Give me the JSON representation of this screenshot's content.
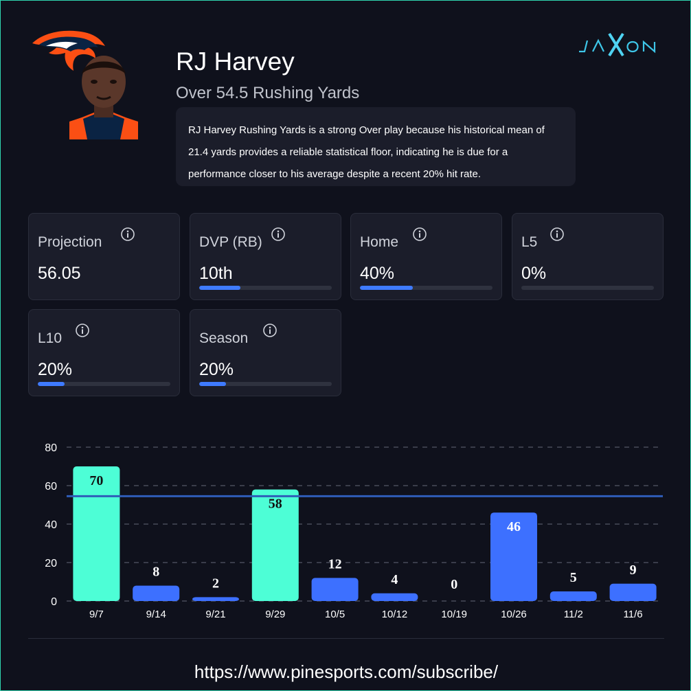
{
  "header": {
    "player_name": "RJ Harvey",
    "prop_line": "Over 54.5 Rushing Yards",
    "team_logo_icon": "broncos-logo",
    "headshot_icon": "player-headshot",
    "brand_logo": "JAXON"
  },
  "summary": {
    "text": "RJ Harvey Rushing Yards is a strong Over play because his historical mean of 21.4 yards provides a reliable statistical floor, indicating he is due for a performance closer to his average despite a recent 20% hit rate."
  },
  "stats": {
    "projection": {
      "label": "Projection",
      "value": "56.05"
    },
    "dvp": {
      "label": "DVP (RB)",
      "value": "10th",
      "progress": 0.31
    },
    "home": {
      "label": "Home",
      "value": "40%",
      "progress": 0.4
    },
    "l5": {
      "label": "L5",
      "value": "0%",
      "progress": 0
    },
    "l10": {
      "label": "L10",
      "value": "20%",
      "progress": 0.2
    },
    "season": {
      "label": "Season",
      "value": "20%",
      "progress": 0.2
    }
  },
  "chart_data": {
    "type": "bar",
    "categories": [
      "9/7",
      "9/14",
      "9/21",
      "9/29",
      "10/5",
      "10/12",
      "10/19",
      "10/26",
      "11/2",
      "11/6"
    ],
    "values": [
      70,
      8,
      2,
      58,
      12,
      4,
      0,
      46,
      5,
      9
    ],
    "line_value": 54.5,
    "ylim": [
      0,
      80
    ],
    "yticks": [
      0,
      20,
      40,
      60,
      80
    ],
    "grid": true,
    "colors": {
      "over": "#4dfed6",
      "under": "#3d70ff",
      "line": "#2f5db8",
      "grid": "#3a3d4a"
    }
  },
  "footer": {
    "url": "https://www.pinesports.com/subscribe/"
  },
  "colors": {
    "background": "#0f111c",
    "card": "#1b1d2a",
    "accent": "#3f7bff",
    "border": "#2fd6b0"
  }
}
